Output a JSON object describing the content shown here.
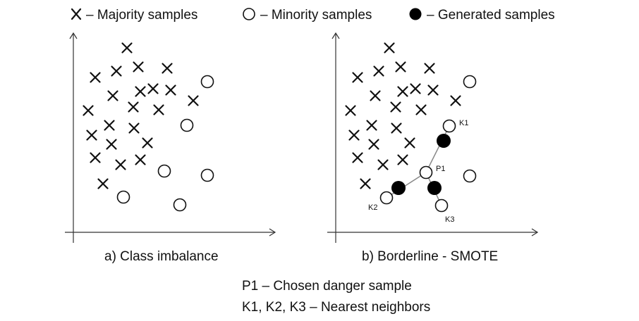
{
  "legend": {
    "majority": "– Majority samples",
    "minority": "– Minority samples",
    "generated": "– Generated samples"
  },
  "panels": {
    "a": {
      "caption": "a) Class imbalance"
    },
    "b": {
      "caption": "b) Borderline - SMOTE",
      "point_labels": {
        "p1": "P1",
        "k1": "K1",
        "k2": "K2",
        "k3": "K3"
      }
    }
  },
  "notes": {
    "p1": "P1 – Chosen danger sample",
    "neighbors": "K1, K2, K3 – Nearest neighbors"
  },
  "colors": {
    "ink": "#111111",
    "axis": "#333333",
    "connector": "#888888"
  }
}
